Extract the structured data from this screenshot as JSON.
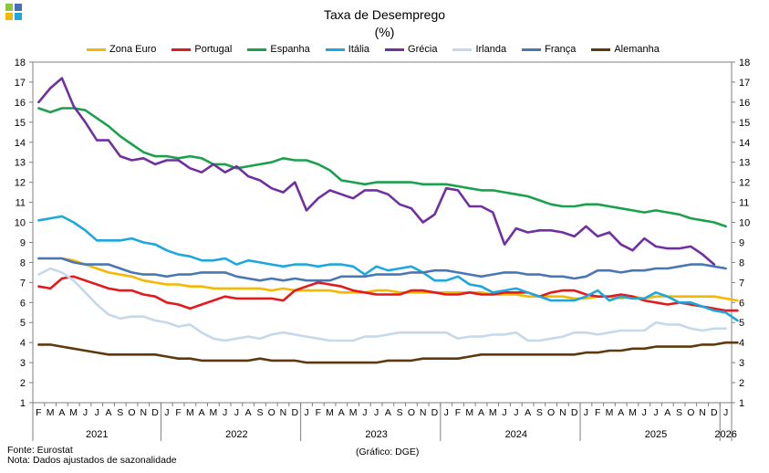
{
  "chart_data": {
    "type": "line",
    "title": "Taxa de Desemprego",
    "subtitle": "(%)",
    "ylim": [
      1,
      18
    ],
    "yticks": [
      1,
      2,
      3,
      4,
      5,
      6,
      7,
      8,
      9,
      10,
      11,
      12,
      13,
      14,
      15,
      16,
      17,
      18
    ],
    "grid": false,
    "legend_position": "top",
    "x_month_letters": [
      "F",
      "M",
      "A",
      "M",
      "J",
      "J",
      "A",
      "S",
      "O",
      "N",
      "D",
      "J",
      "F",
      "M",
      "A",
      "M",
      "J",
      "J",
      "A",
      "S",
      "O",
      "N",
      "D",
      "J",
      "F",
      "M",
      "A",
      "M",
      "J",
      "J",
      "A",
      "S",
      "O",
      "N",
      "D",
      "J",
      "F",
      "M",
      "A",
      "M",
      "J",
      "J",
      "A",
      "S",
      "O",
      "N",
      "D",
      "J",
      "F",
      "M",
      "A",
      "M",
      "J",
      "J",
      "A",
      "S",
      "O",
      "N",
      "D",
      "J"
    ],
    "x_year_labels": [
      {
        "label": "2021",
        "index": 5
      },
      {
        "label": "2022",
        "index": 17
      },
      {
        "label": "2023",
        "index": 29
      },
      {
        "label": "2024",
        "index": 41
      },
      {
        "label": "2025",
        "index": 53
      },
      {
        "label": "2026",
        "index": 59
      }
    ],
    "x_year_separators": [
      10.5,
      22.5,
      34.5,
      46.5,
      58.5
    ],
    "series": [
      {
        "name": "Zona Euro",
        "color": "#F5B800",
        "values": [
          8.2,
          8.2,
          8.2,
          8.1,
          7.9,
          7.7,
          7.5,
          7.4,
          7.3,
          7.1,
          7.0,
          6.9,
          6.9,
          6.8,
          6.8,
          6.7,
          6.7,
          6.7,
          6.7,
          6.7,
          6.6,
          6.7,
          6.6,
          6.6,
          6.6,
          6.6,
          6.5,
          6.5,
          6.5,
          6.6,
          6.6,
          6.5,
          6.5,
          6.5,
          6.5,
          6.5,
          6.5,
          6.5,
          6.5,
          6.4,
          6.4,
          6.4,
          6.3,
          6.3,
          6.3,
          6.3,
          6.2,
          6.2,
          6.3,
          6.3,
          6.2,
          6.3,
          6.2,
          6.3,
          6.3,
          6.3,
          6.3,
          6.3,
          6.3,
          6.2,
          6.1
        ]
      },
      {
        "name": "Portugal",
        "color": "#E31A1C",
        "values": [
          6.8,
          6.7,
          7.2,
          7.3,
          7.1,
          6.9,
          6.7,
          6.6,
          6.6,
          6.4,
          6.3,
          6.0,
          5.9,
          5.7,
          5.9,
          6.1,
          6.3,
          6.2,
          6.2,
          6.2,
          6.2,
          6.1,
          6.6,
          6.8,
          7.0,
          6.9,
          6.8,
          6.6,
          6.5,
          6.4,
          6.4,
          6.4,
          6.6,
          6.6,
          6.5,
          6.4,
          6.4,
          6.5,
          6.4,
          6.4,
          6.5,
          6.5,
          6.5,
          6.3,
          6.5,
          6.6,
          6.6,
          6.4,
          6.3,
          6.3,
          6.4,
          6.3,
          6.1,
          6.0,
          5.9,
          6.0,
          5.9,
          5.8,
          5.7,
          5.6,
          5.6
        ]
      },
      {
        "name": "Espanha",
        "color": "#1BA14B",
        "values": [
          15.7,
          15.5,
          15.7,
          15.7,
          15.6,
          15.2,
          14.8,
          14.3,
          13.9,
          13.5,
          13.3,
          13.3,
          13.2,
          13.3,
          13.2,
          12.9,
          12.9,
          12.7,
          12.8,
          12.9,
          13.0,
          13.2,
          13.1,
          13.1,
          12.9,
          12.6,
          12.1,
          12.0,
          11.9,
          12.0,
          12.0,
          12.0,
          12.0,
          11.9,
          11.9,
          11.9,
          11.8,
          11.7,
          11.6,
          11.6,
          11.5,
          11.4,
          11.3,
          11.1,
          10.9,
          10.8,
          10.8,
          10.9,
          10.9,
          10.8,
          10.7,
          10.6,
          10.5,
          10.6,
          10.5,
          10.4,
          10.2,
          10.1,
          10.0,
          9.8
        ]
      },
      {
        "name": "Itália",
        "color": "#1EA7DE",
        "values": [
          10.1,
          10.2,
          10.3,
          10.0,
          9.6,
          9.1,
          9.1,
          9.1,
          9.2,
          9.0,
          8.9,
          8.6,
          8.4,
          8.3,
          8.1,
          8.1,
          8.2,
          7.9,
          8.1,
          8.0,
          7.9,
          7.8,
          7.9,
          7.9,
          7.8,
          7.9,
          7.9,
          7.8,
          7.4,
          7.8,
          7.6,
          7.7,
          7.8,
          7.5,
          7.1,
          7.1,
          7.3,
          6.9,
          6.8,
          6.5,
          6.6,
          6.7,
          6.5,
          6.3,
          6.1,
          6.1,
          6.1,
          6.3,
          6.6,
          6.1,
          6.3,
          6.2,
          6.2,
          6.5,
          6.3,
          6.0,
          6.0,
          5.8,
          5.6,
          5.5,
          5.1
        ]
      },
      {
        "name": "Grécia",
        "color": "#7030A0",
        "values": [
          16.0,
          16.7,
          17.2,
          15.8,
          15.0,
          14.1,
          14.1,
          13.3,
          13.1,
          13.2,
          12.9,
          13.1,
          13.1,
          12.7,
          12.5,
          12.9,
          12.5,
          12.8,
          12.3,
          12.1,
          11.7,
          11.5,
          12.0,
          10.6,
          11.2,
          11.6,
          11.4,
          11.2,
          11.6,
          11.6,
          11.4,
          10.9,
          10.7,
          10.0,
          10.4,
          11.7,
          11.6,
          10.8,
          10.8,
          10.5,
          8.9,
          9.7,
          9.5,
          9.6,
          9.6,
          9.5,
          9.3,
          9.8,
          9.3,
          9.5,
          8.9,
          8.6,
          9.2,
          8.8,
          8.7,
          8.7,
          8.8,
          8.4,
          7.9
        ]
      },
      {
        "name": "Irlanda",
        "color": "#C5D9EB",
        "values": [
          7.4,
          7.7,
          7.5,
          7.1,
          6.5,
          5.9,
          5.4,
          5.2,
          5.3,
          5.3,
          5.1,
          5.0,
          4.8,
          4.9,
          4.5,
          4.2,
          4.1,
          4.2,
          4.3,
          4.2,
          4.4,
          4.5,
          4.4,
          4.3,
          4.2,
          4.1,
          4.1,
          4.1,
          4.3,
          4.3,
          4.4,
          4.5,
          4.5,
          4.5,
          4.5,
          4.5,
          4.2,
          4.3,
          4.3,
          4.4,
          4.4,
          4.5,
          4.1,
          4.1,
          4.2,
          4.3,
          4.5,
          4.5,
          4.4,
          4.5,
          4.6,
          4.6,
          4.6,
          5.0,
          4.9,
          4.9,
          4.7,
          4.6,
          4.7,
          4.7
        ]
      },
      {
        "name": "França",
        "color": "#4A77B4",
        "values": [
          8.2,
          8.2,
          8.2,
          8.0,
          7.9,
          7.9,
          7.9,
          7.7,
          7.5,
          7.4,
          7.4,
          7.3,
          7.4,
          7.4,
          7.5,
          7.5,
          7.5,
          7.3,
          7.2,
          7.1,
          7.2,
          7.1,
          7.2,
          7.1,
          7.1,
          7.1,
          7.3,
          7.3,
          7.3,
          7.4,
          7.4,
          7.4,
          7.5,
          7.5,
          7.6,
          7.6,
          7.5,
          7.4,
          7.3,
          7.4,
          7.5,
          7.5,
          7.4,
          7.4,
          7.3,
          7.3,
          7.2,
          7.3,
          7.6,
          7.6,
          7.5,
          7.6,
          7.6,
          7.7,
          7.7,
          7.8,
          7.9,
          7.9,
          7.8,
          7.7
        ]
      },
      {
        "name": "Alemanha",
        "color": "#5C3A0E",
        "values": [
          3.9,
          3.9,
          3.8,
          3.7,
          3.6,
          3.5,
          3.4,
          3.4,
          3.4,
          3.4,
          3.4,
          3.3,
          3.2,
          3.2,
          3.1,
          3.1,
          3.1,
          3.1,
          3.1,
          3.2,
          3.1,
          3.1,
          3.1,
          3.0,
          3.0,
          3.0,
          3.0,
          3.0,
          3.0,
          3.0,
          3.1,
          3.1,
          3.1,
          3.2,
          3.2,
          3.2,
          3.2,
          3.3,
          3.4,
          3.4,
          3.4,
          3.4,
          3.4,
          3.4,
          3.4,
          3.4,
          3.4,
          3.5,
          3.5,
          3.6,
          3.6,
          3.7,
          3.7,
          3.8,
          3.8,
          3.8,
          3.8,
          3.9,
          3.9,
          4.0,
          4.0
        ]
      }
    ]
  },
  "footer": {
    "source": "Fonte: Eurostat",
    "note": "Nota: Dados ajustados de sazonalidade",
    "credit": "(Gráfico: DGE)"
  },
  "logo_colors": [
    "#8BC53F",
    "#4A6FB5",
    "#F5B800",
    "#1EA7DE"
  ]
}
